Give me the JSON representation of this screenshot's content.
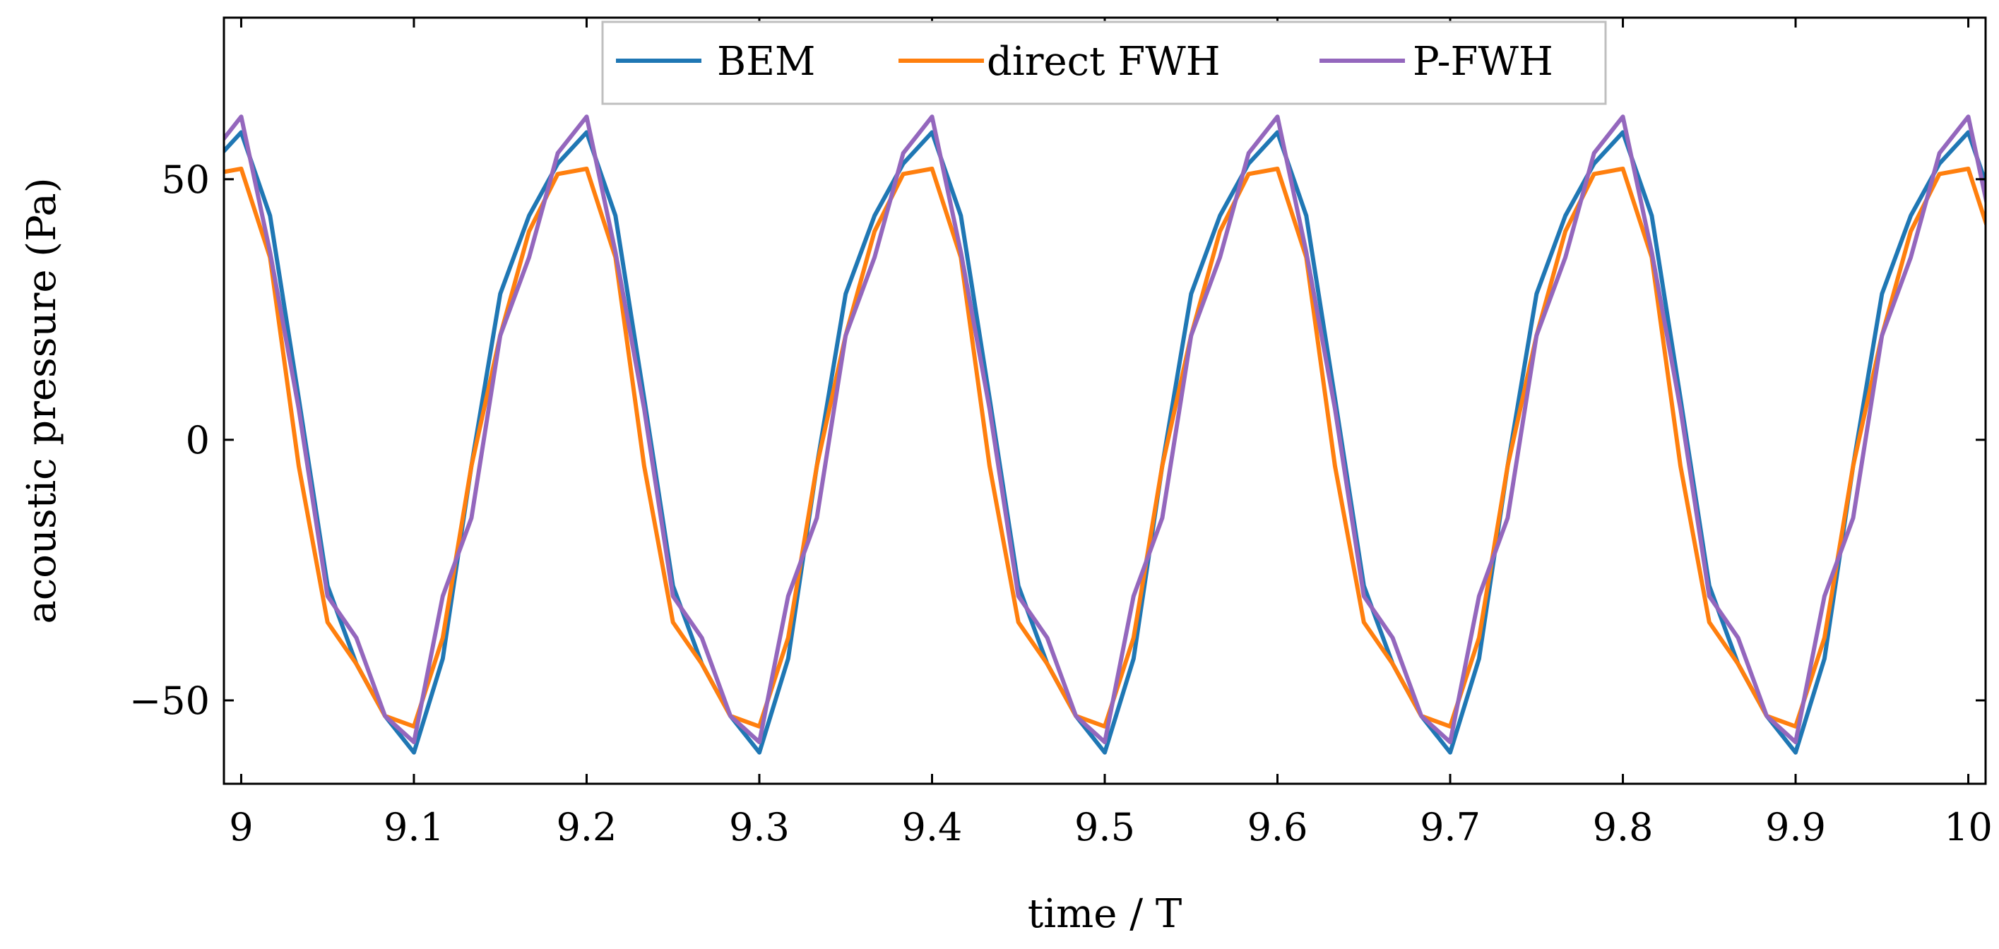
{
  "chart_data": {
    "type": "line",
    "xlabel": "time / T",
    "ylabel": "acoustic pressure (Pa)",
    "xlim": [
      8.99,
      10.01
    ],
    "ylim": [
      -66,
      81
    ],
    "xticks": [
      9,
      9.1,
      9.2,
      9.3,
      9.4,
      9.5,
      9.6,
      9.7,
      9.8,
      9.9,
      10
    ],
    "xtick_labels": [
      "9",
      "9.1",
      "9.2",
      "9.3",
      "9.4",
      "9.5",
      "9.6",
      "9.7",
      "9.8",
      "9.9",
      "10"
    ],
    "yticks": [
      -50,
      0,
      50
    ],
    "ytick_labels": [
      "−50",
      "0",
      "50"
    ],
    "grid": false,
    "legend_position": "top-center",
    "series": [
      {
        "name": "BEM",
        "color": "#1f77b4",
        "period_x": [
          0,
          0.0167,
          0.0333,
          0.05,
          0.0667,
          0.0833,
          0.1,
          0.1167,
          0.1333,
          0.15,
          0.1667,
          0.1833,
          0.2
        ],
        "period_y": [
          59,
          43,
          8,
          -28,
          -43,
          -53,
          -60,
          -42,
          -5,
          28,
          43,
          53,
          59
        ],
        "x_start": 8.99,
        "x_end": 10.01
      },
      {
        "name": "direct FWH",
        "color": "#ff7f0e",
        "period_x": [
          0,
          0.0167,
          0.0333,
          0.05,
          0.0667,
          0.0833,
          0.1,
          0.1167,
          0.1333,
          0.15,
          0.1667,
          0.1833,
          0.2
        ],
        "period_y": [
          52,
          35,
          -5,
          -35,
          -43,
          -53,
          -55,
          -38,
          -5,
          20,
          40,
          51,
          52
        ],
        "x_start": 8.99,
        "x_end": 10.01
      },
      {
        "name": "P-FWH",
        "color": "#9467bd",
        "period_x": [
          0,
          0.0167,
          0.0333,
          0.05,
          0.0667,
          0.0833,
          0.1,
          0.1167,
          0.1333,
          0.15,
          0.1667,
          0.1833,
          0.2
        ],
        "period_y": [
          62,
          36,
          6,
          -30,
          -38,
          -53,
          -58,
          -30,
          -15,
          20,
          35,
          55,
          62
        ],
        "x_start": 8.99,
        "x_end": 10.01
      }
    ]
  }
}
